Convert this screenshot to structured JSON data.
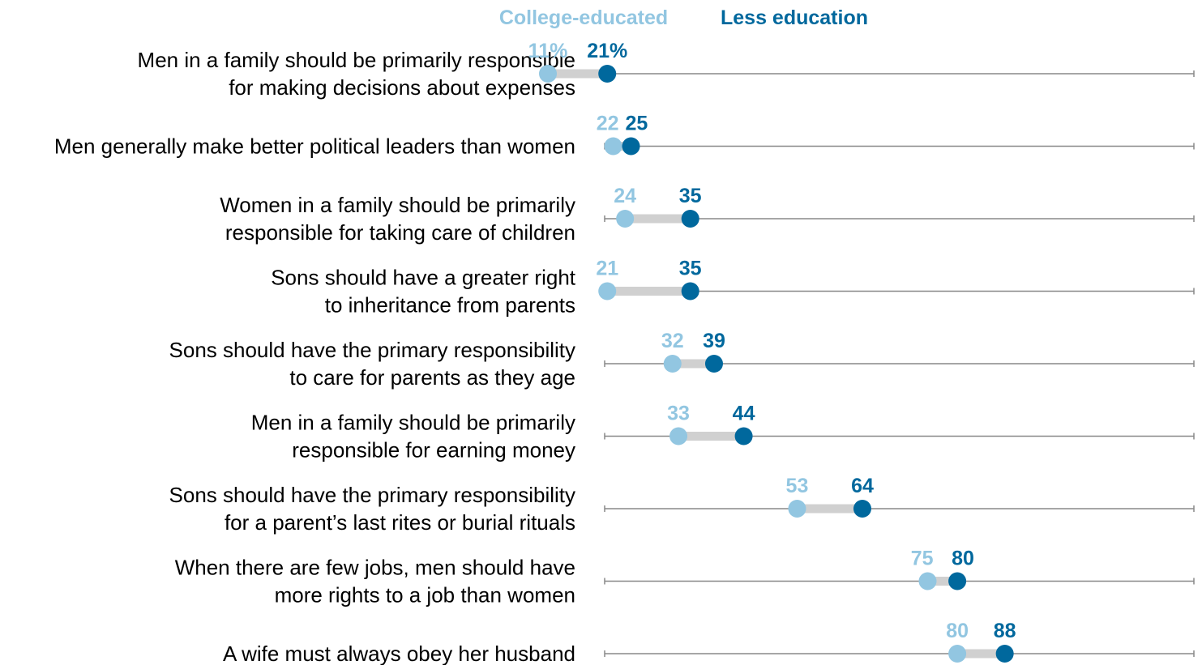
{
  "chart_data": {
    "type": "dot-plot",
    "xlim": [
      0,
      100
    ],
    "legend": {
      "placement": "top",
      "entries": [
        {
          "name": "College-educated",
          "color": "#92c6e1"
        },
        {
          "name": "Less education",
          "color": "#00689d"
        }
      ]
    },
    "categories": [
      [
        "Men in a family should be primarily responsible",
        "for making decisions about expenses"
      ],
      [
        "Men generally make better political leaders than women"
      ],
      [
        "Women in a family should be primarily",
        "responsible for taking care of children"
      ],
      [
        "Sons should have a greater right",
        "to inheritance from parents"
      ],
      [
        "Sons should have the primary responsibility",
        "to care for parents as they age"
      ],
      [
        "Men in a family should be primarily",
        "responsible for earning money"
      ],
      [
        "Sons should have the primary responsibility",
        "for a parent’s last rites or burial rituals"
      ],
      [
        "When there are few jobs, men should have",
        "more rights to a job than women"
      ],
      [
        "A wife must always obey her husband"
      ]
    ],
    "series": [
      {
        "name": "College-educated",
        "color": "#92c6e1",
        "values": [
          11,
          22,
          24,
          21,
          32,
          33,
          53,
          75,
          80
        ]
      },
      {
        "name": "Less education",
        "color": "#00689d",
        "values": [
          21,
          25,
          35,
          35,
          39,
          44,
          64,
          80,
          88
        ]
      }
    ],
    "value_labels": {
      "College-educated": [
        "11%",
        "22",
        "24",
        "21",
        "32",
        "33",
        "53",
        "75",
        "80"
      ],
      "Less education": [
        "21%",
        "25",
        "35",
        "35",
        "39",
        "44",
        "64",
        "80",
        "88"
      ]
    },
    "connector_color": "#d0d0d0",
    "axis_line_color": "#888888"
  }
}
